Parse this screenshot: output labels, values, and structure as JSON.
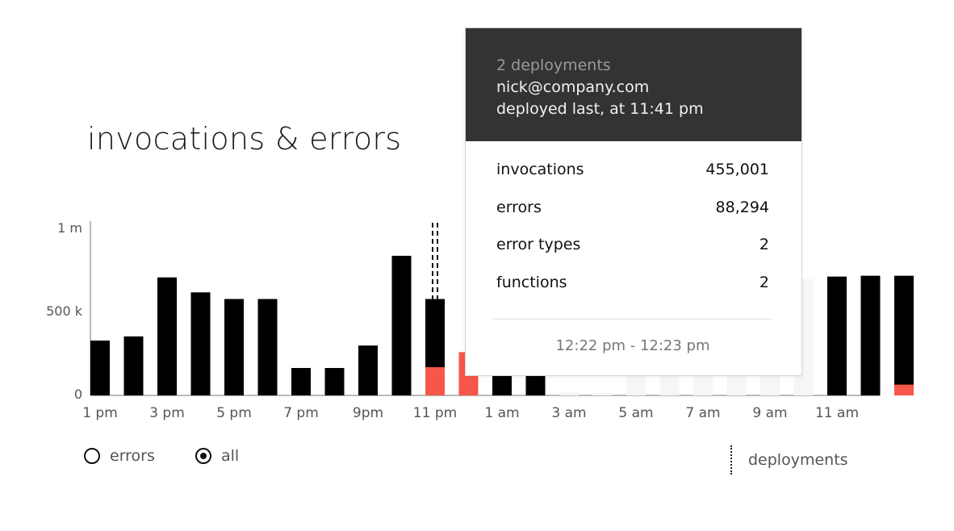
{
  "title": "invocations & errors",
  "colors": {
    "bar": "#000000",
    "error": "#f7564a",
    "faded": "#f6f6f6",
    "tooltip_header": "#333333"
  },
  "legend": {
    "errors": "errors",
    "all": "all",
    "selected": "all",
    "deployments": "deployments"
  },
  "tooltip": {
    "header_sub": "2 deployments",
    "header_user": "nick@company.com",
    "header_time": "deployed last, at 11:41 pm",
    "rows": [
      {
        "label": "invocations",
        "value": "455,001"
      },
      {
        "label": "errors",
        "value": "88,294"
      },
      {
        "label": "error types",
        "value": "2"
      },
      {
        "label": "functions",
        "value": "2"
      }
    ],
    "range": "12:22 pm - 12:23 pm"
  },
  "chart_data": {
    "type": "bar",
    "stacked": true,
    "ylim": [
      0,
      1000000
    ],
    "yticks": [
      {
        "value": 0,
        "label": "0"
      },
      {
        "value": 500000,
        "label": "500 k"
      },
      {
        "value": 1000000,
        "label": "1 m"
      }
    ],
    "xtick_labels": [
      "1 pm",
      "3 pm",
      "5 pm",
      "7 pm",
      "9pm",
      "11 pm",
      "1 am",
      "3 am",
      "5 am",
      "7 am",
      "9 am",
      "11 am"
    ],
    "deployment_marker_index": 10,
    "series": [
      {
        "values": [
          330000,
          355000,
          710000,
          620000,
          580000,
          580000,
          165000,
          165000,
          300000,
          840000,
          580000,
          260000,
          270000,
          250000,
          20000,
          15000,
          160000,
          440000,
          520000,
          770000,
          870000,
          700000,
          715000,
          720000,
          720000
        ]
      },
      {
        "values": [
          0,
          0,
          0,
          0,
          0,
          0,
          0,
          0,
          0,
          0,
          170000,
          260000,
          0,
          0,
          0,
          0,
          0,
          0,
          0,
          0,
          0,
          0,
          0,
          0,
          65000
        ]
      }
    ],
    "faded_under_tooltip": [
      false,
      false,
      false,
      false,
      false,
      false,
      false,
      false,
      false,
      false,
      false,
      false,
      false,
      false,
      true,
      true,
      true,
      true,
      true,
      true,
      true,
      true,
      false,
      false,
      false
    ]
  }
}
